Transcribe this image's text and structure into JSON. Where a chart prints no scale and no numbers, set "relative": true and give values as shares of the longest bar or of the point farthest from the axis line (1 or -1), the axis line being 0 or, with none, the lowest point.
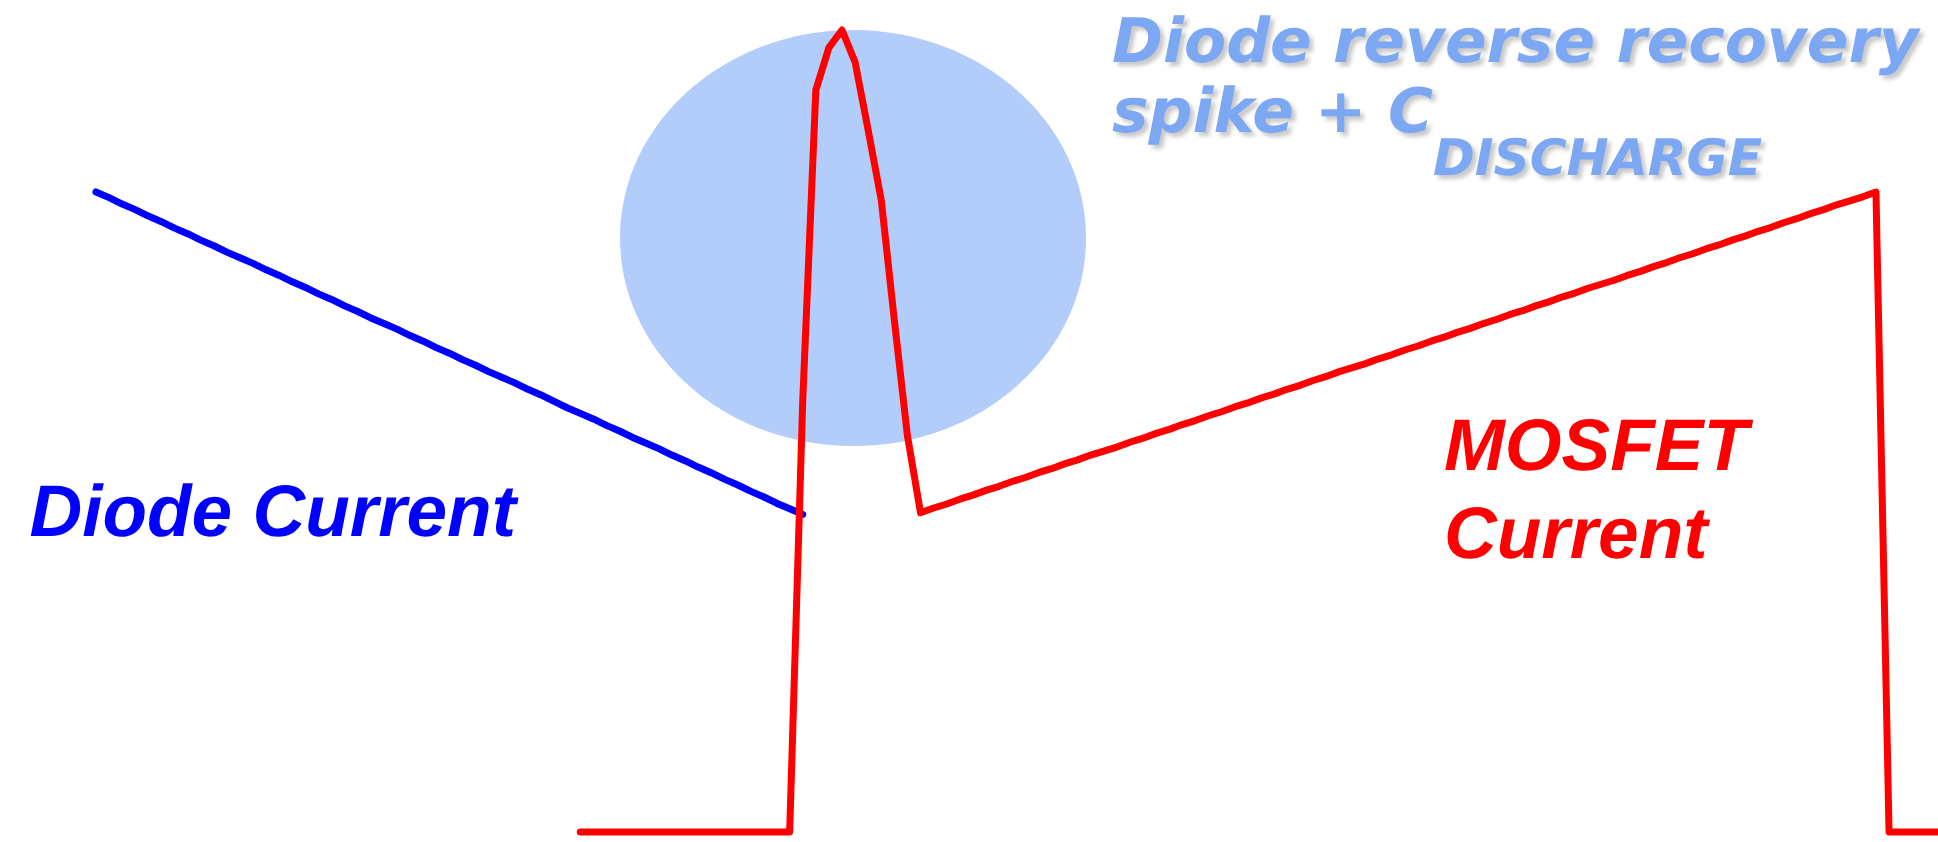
{
  "chart_data": {
    "type": "line",
    "relative": true,
    "categories": [
      null,
      null,
      null,
      null,
      null,
      null,
      null,
      null,
      null,
      null,
      null,
      null,
      null,
      null,
      null,
      null,
      null,
      null,
      null,
      null,
      null,
      null,
      null,
      null,
      null,
      null,
      null,
      null,
      null,
      null,
      null,
      null,
      null,
      null,
      null,
      null,
      null,
      null,
      null,
      null,
      null,
      null,
      null,
      null,
      null,
      null,
      null,
      null,
      null,
      null,
      null,
      null,
      null,
      null,
      null,
      null,
      null,
      null,
      null,
      null,
      null,
      null,
      null,
      null,
      null,
      null,
      null,
      null,
      null,
      null,
      null,
      null,
      null,
      null,
      null,
      null,
      null,
      null,
      null,
      null,
      null,
      null,
      null,
      null,
      null,
      null,
      null,
      null,
      null,
      null,
      null,
      null,
      null,
      null,
      null,
      null,
      null,
      null,
      null,
      null,
      null,
      null,
      null,
      null,
      null,
      null,
      null,
      null,
      null,
      null,
      null,
      null,
      null,
      null,
      null,
      null,
      null,
      null,
      null,
      null,
      null,
      null,
      null,
      null,
      null,
      null,
      null,
      null,
      null,
      null,
      null,
      null,
      null,
      null,
      null,
      null,
      null,
      null,
      null,
      null,
      null,
      null
    ],
    "series": [
      {
        "name": "Diode Current",
        "color": "#0000ff",
        "values": [
          0.798,
          0.791,
          0.783,
          0.776,
          0.768,
          0.761,
          0.753,
          0.746,
          0.738,
          0.731,
          0.723,
          0.716,
          0.709,
          0.701,
          0.694,
          0.686,
          0.679,
          0.671,
          0.664,
          0.656,
          0.649,
          0.641,
          0.634,
          0.627,
          0.619,
          0.612,
          0.604,
          0.597,
          0.589,
          0.582,
          0.574,
          0.567,
          0.56,
          0.552,
          0.545,
          0.537,
          0.529,
          0.522,
          0.515,
          0.507,
          0.5,
          0.492,
          0.485,
          0.478,
          0.47,
          0.463,
          0.455,
          0.448,
          0.44,
          0.433,
          0.425,
          0.418,
          0.41,
          0.403,
          0.396,
          null,
          null,
          null,
          null,
          null,
          null,
          null,
          null,
          null,
          null,
          null,
          null,
          null,
          null,
          null,
          null,
          null,
          null,
          null,
          null,
          null,
          null,
          null,
          null,
          null,
          null,
          null,
          null,
          null,
          null,
          null,
          null,
          null,
          null,
          null,
          null,
          null,
          null,
          null,
          null,
          null,
          null,
          null,
          null,
          null,
          null,
          null,
          null,
          null,
          null,
          null,
          null,
          null,
          null,
          null,
          null,
          null,
          null,
          null,
          null,
          null,
          null,
          null,
          null,
          null,
          null,
          null,
          null,
          null,
          null,
          null,
          null,
          null,
          null,
          null,
          null,
          null,
          null,
          null,
          null,
          null,
          null,
          null,
          null,
          null,
          null,
          null
        ]
      },
      {
        "name": "MOSFET Current",
        "color": "#ff0000",
        "values": [
          null,
          null,
          null,
          null,
          null,
          null,
          null,
          null,
          null,
          null,
          null,
          null,
          null,
          null,
          null,
          null,
          null,
          null,
          null,
          null,
          null,
          null,
          null,
          null,
          null,
          null,
          null,
          null,
          null,
          null,
          null,
          null,
          null,
          null,
          null,
          null,
          null,
          0,
          0,
          0,
          0,
          0,
          0,
          0,
          0,
          0,
          0,
          0,
          0,
          0,
          0,
          0,
          0,
          0,
          0.538,
          0.925,
          0.978,
          1,
          0.96,
          0.875,
          0.788,
          0.638,
          0.494,
          0.398,
          0.404,
          0.409,
          0.415,
          0.42,
          0.426,
          0.431,
          0.437,
          0.442,
          0.448,
          0.453,
          0.459,
          0.464,
          0.47,
          0.475,
          0.48,
          0.486,
          0.491,
          0.497,
          0.502,
          0.508,
          0.513,
          0.519,
          0.524,
          0.53,
          0.535,
          0.541,
          0.546,
          0.552,
          0.557,
          0.563,
          0.568,
          0.574,
          0.579,
          0.584,
          0.59,
          0.595,
          0.601,
          0.606,
          0.612,
          0.617,
          0.623,
          0.628,
          0.634,
          0.639,
          0.645,
          0.65,
          0.656,
          0.661,
          0.667,
          0.672,
          0.678,
          0.683,
          0.688,
          0.694,
          0.699,
          0.705,
          0.71,
          0.716,
          0.721,
          0.727,
          0.732,
          0.738,
          0.743,
          0.749,
          0.754,
          0.76,
          0.765,
          0.771,
          0.776,
          0.782,
          0.787,
          0.792,
          0.798,
          0,
          0,
          0,
          0,
          0
        ]
      }
    ],
    "annotations": [
      "Diode reverse recovery spike + C$_{DISCHARGE}$"
    ]
  }
}
